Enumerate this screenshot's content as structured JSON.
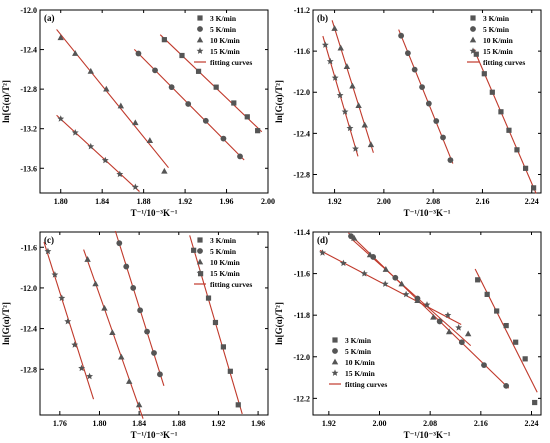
{
  "colors": {
    "marker": "#555555",
    "fit": "#c0392b",
    "axis": "#000000"
  },
  "chart_data": [
    {
      "type": "scatter",
      "panel_label": "(a)",
      "xlabel": "T⁻¹/10⁻³K⁻¹",
      "ylabel": "ln[G(α)/T²]",
      "xlim": [
        1.78,
        2.0
      ],
      "ylim": [
        -13.85,
        -12.0
      ],
      "xticks": [
        1.8,
        1.84,
        1.88,
        1.92,
        1.96,
        2.0
      ],
      "yticks": [
        -13.6,
        -13.2,
        -12.8,
        -12.4,
        -12.0
      ],
      "x_decimals": 2,
      "y_decimals": 1,
      "legend_position": "top-right",
      "legend_entries": [
        "3 K/min",
        "5 K/min",
        "10 K/min",
        "15 K/min",
        "fitting curves"
      ],
      "series": [
        {
          "name": "3 K/min",
          "marker": "square",
          "x": [
            1.9,
            1.917,
            1.933,
            1.95,
            1.967,
            1.98,
            1.99
          ],
          "y": [
            -12.3,
            -12.46,
            -12.62,
            -12.78,
            -12.94,
            -13.08,
            -13.22
          ]
        },
        {
          "name": "5 K/min",
          "marker": "circle",
          "x": [
            1.875,
            1.891,
            1.907,
            1.923,
            1.94,
            1.957,
            1.973
          ],
          "y": [
            -12.44,
            -12.61,
            -12.78,
            -12.95,
            -13.12,
            -13.3,
            -13.48
          ]
        },
        {
          "name": "10 K/min",
          "marker": "triangle",
          "x": [
            1.8,
            1.814,
            1.829,
            1.844,
            1.858,
            1.872,
            1.886,
            1.9
          ],
          "y": [
            -12.28,
            -12.44,
            -12.62,
            -12.8,
            -12.97,
            -13.14,
            -13.32,
            -13.63
          ]
        },
        {
          "name": "15 K/min",
          "marker": "star",
          "x": [
            1.8,
            1.814,
            1.829,
            1.843,
            1.857,
            1.872
          ],
          "y": [
            -13.1,
            -13.24,
            -13.38,
            -13.52,
            -13.66,
            -13.79
          ]
        }
      ]
    },
    {
      "type": "scatter",
      "panel_label": "(b)",
      "xlabel": "T⁻¹/10⁻³K⁻¹",
      "ylabel": "ln[G(α)/T²]",
      "xlim": [
        1.885,
        2.255
      ],
      "ylim": [
        -12.98,
        -11.2
      ],
      "xticks": [
        1.92,
        2.0,
        2.08,
        2.16,
        2.24
      ],
      "yticks": [
        -12.8,
        -12.4,
        -12.0,
        -11.6,
        -11.2
      ],
      "x_decimals": 2,
      "y_decimals": 1,
      "legend_position": "top-right",
      "legend_entries": [
        "3 K/min",
        "5 K/min",
        "10 K/min",
        "15 K/min",
        "fitting curves"
      ],
      "series": [
        {
          "name": "3 K/min",
          "marker": "square",
          "x": [
            2.15,
            2.163,
            2.176,
            2.19,
            2.203,
            2.216,
            2.23,
            2.243
          ],
          "y": [
            -11.63,
            -11.82,
            -12.0,
            -12.19,
            -12.37,
            -12.56,
            -12.74,
            -12.93
          ]
        },
        {
          "name": "5 K/min",
          "marker": "circle",
          "x": [
            2.028,
            2.039,
            2.05,
            2.062,
            2.073,
            2.085,
            2.096,
            2.108
          ],
          "y": [
            -11.45,
            -11.62,
            -11.78,
            -11.95,
            -12.11,
            -12.28,
            -12.44,
            -12.66
          ]
        },
        {
          "name": "10 K/min",
          "marker": "triangle",
          "x": [
            1.92,
            1.93,
            1.94,
            1.949,
            1.959,
            1.969,
            1.979
          ],
          "y": [
            -11.38,
            -11.57,
            -11.75,
            -11.94,
            -12.13,
            -12.32,
            -12.51
          ]
        },
        {
          "name": "15 K/min",
          "marker": "star",
          "x": [
            1.905,
            1.913,
            1.921,
            1.929,
            1.937,
            1.945,
            1.954
          ],
          "y": [
            -11.54,
            -11.7,
            -11.86,
            -12.03,
            -12.19,
            -12.35,
            -12.55
          ]
        }
      ]
    },
    {
      "type": "scatter",
      "panel_label": "(c)",
      "xlabel": "T⁻¹/10⁻³K⁻¹",
      "ylabel": "ln[G(α)/T²]",
      "xlim": [
        1.74,
        1.97
      ],
      "ylim": [
        -13.25,
        -11.45
      ],
      "xticks": [
        1.76,
        1.8,
        1.84,
        1.88,
        1.92,
        1.96
      ],
      "yticks": [
        -12.8,
        -12.4,
        -12.0,
        -11.6
      ],
      "x_decimals": 2,
      "y_decimals": 1,
      "legend_position": "top-right",
      "legend_entries": [
        "3 K/min",
        "5 K/min",
        "10 K/min",
        "15 K/min",
        "fitting curves"
      ],
      "series": [
        {
          "name": "3 K/min",
          "marker": "square",
          "x": [
            1.895,
            1.902,
            1.91,
            1.917,
            1.925,
            1.932,
            1.94
          ],
          "y": [
            -11.63,
            -11.86,
            -12.1,
            -12.34,
            -12.58,
            -12.82,
            -13.15
          ]
        },
        {
          "name": "5 K/min",
          "marker": "circle",
          "x": [
            1.82,
            1.827,
            1.834,
            1.841,
            1.848,
            1.855,
            1.861
          ],
          "y": [
            -11.56,
            -11.79,
            -12.0,
            -12.22,
            -12.43,
            -12.64,
            -12.85
          ]
        },
        {
          "name": "10 K/min",
          "marker": "triangle",
          "x": [
            1.788,
            1.796,
            1.805,
            1.813,
            1.822,
            1.83,
            1.84
          ],
          "y": [
            -11.72,
            -11.96,
            -12.2,
            -12.44,
            -12.68,
            -12.92,
            -13.15
          ]
        },
        {
          "name": "15 K/min",
          "marker": "star",
          "x": [
            1.748,
            1.755,
            1.762,
            1.768,
            1.775,
            1.782,
            1.79
          ],
          "y": [
            -11.64,
            -11.87,
            -12.1,
            -12.33,
            -12.56,
            -12.79,
            -12.87
          ]
        }
      ]
    },
    {
      "type": "scatter",
      "panel_label": "(d)",
      "xlabel": "T⁻¹/10⁻³K⁻¹",
      "ylabel": "ln[G(α)/T²]",
      "xlim": [
        1.895,
        2.255
      ],
      "ylim": [
        -12.28,
        -11.4
      ],
      "xticks": [
        1.92,
        2.0,
        2.08,
        2.16,
        2.24
      ],
      "yticks": [
        -12.2,
        -12.0,
        -11.8,
        -11.6,
        -11.4
      ],
      "x_decimals": 2,
      "y_decimals": 1,
      "legend_position": "bottom-left",
      "legend_entries": [
        "3 K/min",
        "5 K/min",
        "10 K/min",
        "15 K/min",
        "fitting curves"
      ],
      "series": [
        {
          "name": "3 K/min",
          "marker": "square",
          "x": [
            2.155,
            2.17,
            2.185,
            2.2,
            2.215,
            2.23,
            2.245
          ],
          "y": [
            -11.63,
            -11.7,
            -11.78,
            -11.85,
            -11.93,
            -12.01,
            -12.22
          ]
        },
        {
          "name": "5 K/min",
          "marker": "circle",
          "x": [
            1.955,
            1.99,
            2.025,
            2.06,
            2.095,
            2.13,
            2.165,
            2.2
          ],
          "y": [
            -11.42,
            -11.52,
            -11.62,
            -11.72,
            -11.83,
            -11.93,
            -12.04,
            -12.14
          ]
        },
        {
          "name": "10 K/min",
          "marker": "triangle",
          "x": [
            1.96,
            1.985,
            2.01,
            2.035,
            2.06,
            2.085,
            2.11,
            2.14
          ],
          "y": [
            -11.43,
            -11.51,
            -11.58,
            -11.65,
            -11.73,
            -11.81,
            -11.88,
            -11.89
          ]
        },
        {
          "name": "15 K/min",
          "marker": "star",
          "x": [
            1.91,
            1.943,
            1.976,
            2.009,
            2.042,
            2.075,
            2.108,
            2.125
          ],
          "y": [
            -11.5,
            -11.55,
            -11.6,
            -11.65,
            -11.7,
            -11.75,
            -11.8,
            -11.86
          ]
        }
      ]
    }
  ]
}
